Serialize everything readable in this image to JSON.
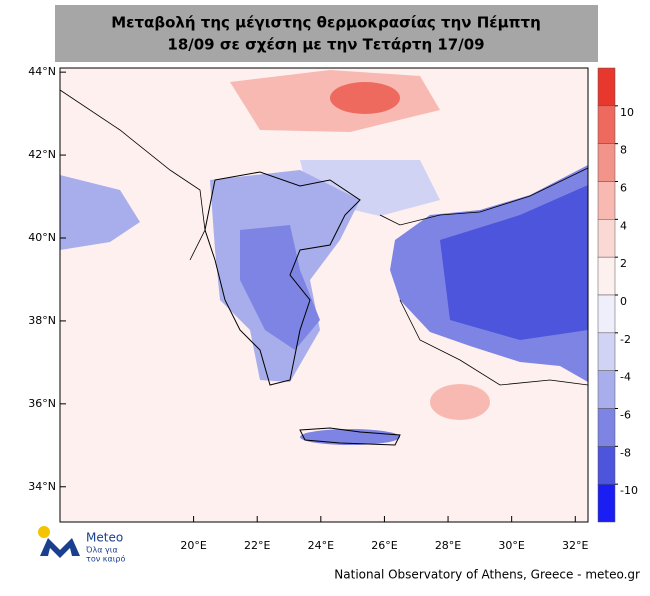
{
  "header": {
    "title_lines": [
      "Μεταβολή της μέγιστης θερμοκρασίας την Πέμπτη",
      "18/09 σε σχέση με την Τετάρτη 17/09"
    ]
  },
  "map": {
    "lon_range": [
      15.8,
      32.4
    ],
    "lat_range": [
      33.15,
      44.1
    ],
    "lat_ticks": [
      {
        "value": 44,
        "label": "44°N"
      },
      {
        "value": 42,
        "label": "42°N"
      },
      {
        "value": 40,
        "label": "40°N"
      },
      {
        "value": 38,
        "label": "38°N"
      },
      {
        "value": 36,
        "label": "36°N"
      },
      {
        "value": 34,
        "label": "34°N"
      }
    ],
    "lon_ticks": [
      {
        "value": 20,
        "label": "20°E"
      },
      {
        "value": 22,
        "label": "22°E"
      },
      {
        "value": 24,
        "label": "24°E"
      },
      {
        "value": 26,
        "label": "26°E"
      },
      {
        "value": 28,
        "label": "28°E"
      },
      {
        "value": 30,
        "label": "30°E"
      },
      {
        "value": 32,
        "label": "32°E"
      }
    ]
  },
  "colorbar": {
    "range": [
      -12,
      12
    ],
    "ticks": [
      10,
      8,
      6,
      4,
      2,
      0,
      -2,
      -4,
      -6,
      -8,
      -10
    ],
    "colors": [
      "#e8372c",
      "#ee6a5e",
      "#f3948a",
      "#f7b9b1",
      "#fad9d4",
      "#fdf1ef",
      "#eeeffb",
      "#d0d3f4",
      "#a8aeec",
      "#7d84e3",
      "#4d55dc",
      "#1a1ef2"
    ]
  },
  "logo": {
    "name": "Meteo",
    "tagline_lines": [
      "Όλα για",
      "τον καιρό"
    ]
  },
  "footer": {
    "credit": "National Observatory of Athens, Greece - meteo.gr"
  }
}
